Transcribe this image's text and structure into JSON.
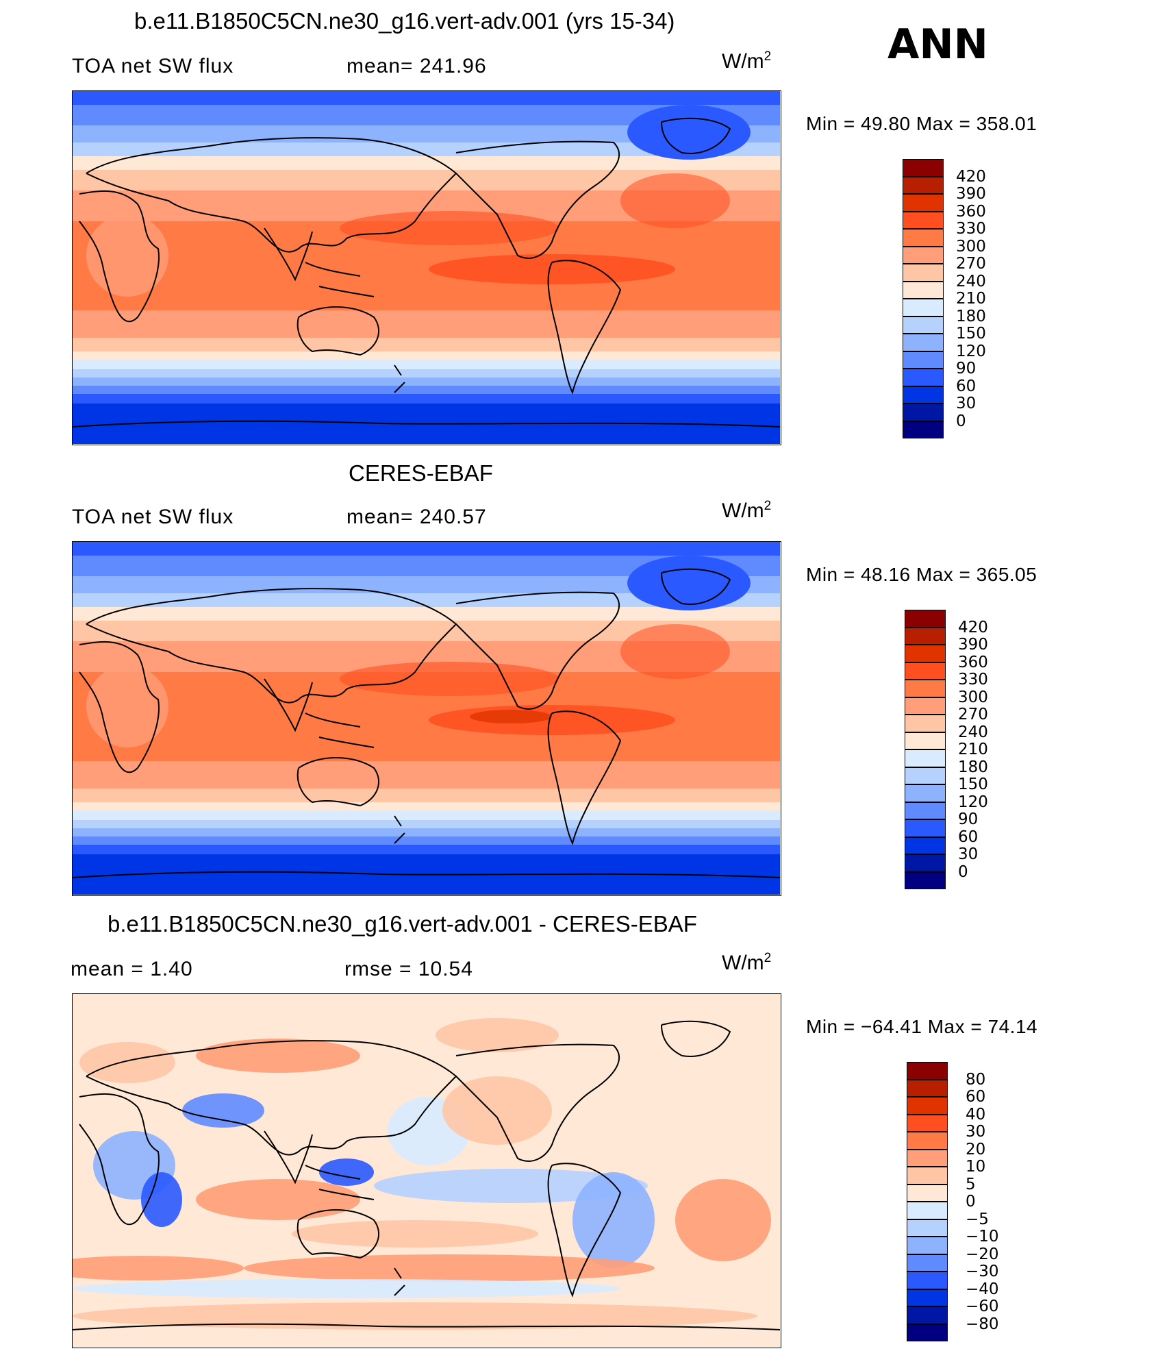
{
  "season": "ANN",
  "panels": [
    {
      "title": "b.e11.B1850C5CN.ne30_g16.vert-adv.001 (yrs 15-34)",
      "left_label": "TOA net SW flux",
      "center_label": "mean= 241.96",
      "units": "W/m",
      "units_sup": "2",
      "min_max": "Min =   49.80 Max = 358.01",
      "colorbar": {
        "labels": [
          "420",
          "390",
          "360",
          "330",
          "300",
          "270",
          "240",
          "210",
          "180",
          "150",
          "120",
          "90",
          "60",
          "30",
          "0"
        ],
        "colors": [
          "#8b0000",
          "#b81e00",
          "#e03300",
          "#ff4e1f",
          "#ff7a45",
          "#ff9e78",
          "#ffc6a6",
          "#ffe8d6",
          "#d8ebff",
          "#b5d2ff",
          "#8db3ff",
          "#5f8bff",
          "#2a5aff",
          "#0035e6",
          "#0017a6",
          "#000080"
        ]
      },
      "field": "sw"
    },
    {
      "title": "CERES-EBAF",
      "left_label": "TOA net SW flux",
      "center_label": "mean= 240.57",
      "units": "W/m",
      "units_sup": "2",
      "min_max": "Min =   48.16 Max = 365.05",
      "colorbar": {
        "labels": [
          "420",
          "390",
          "360",
          "330",
          "300",
          "270",
          "240",
          "210",
          "180",
          "150",
          "120",
          "90",
          "60",
          "30",
          "0"
        ],
        "colors": [
          "#8b0000",
          "#b81e00",
          "#e03300",
          "#ff4e1f",
          "#ff7a45",
          "#ff9e78",
          "#ffc6a6",
          "#ffe8d6",
          "#d8ebff",
          "#b5d2ff",
          "#8db3ff",
          "#5f8bff",
          "#2a5aff",
          "#0035e6",
          "#0017a6",
          "#000080"
        ]
      },
      "field": "sw"
    },
    {
      "title": "b.e11.B1850C5CN.ne30_g16.vert-adv.001 - CERES-EBAF",
      "left_label": "mean =    1.40",
      "center_label": "rmse =   10.54",
      "units": "W/m",
      "units_sup": "2",
      "min_max": "Min = −64.41  Max =    74.14",
      "colorbar": {
        "labels": [
          "80",
          "60",
          "40",
          "30",
          "20",
          "10",
          "5",
          "0",
          "−5",
          "−10",
          "−20",
          "−30",
          "−40",
          "−60",
          "−80"
        ],
        "colors": [
          "#8b0000",
          "#b81e00",
          "#e03300",
          "#ff4e1f",
          "#ff7a45",
          "#ff9e78",
          "#ffc6a6",
          "#ffe8d6",
          "#d8ebff",
          "#b5d2ff",
          "#8db3ff",
          "#5f8bff",
          "#2a5aff",
          "#0035e6",
          "#0017a6",
          "#000080"
        ]
      },
      "field": "diff"
    }
  ]
}
